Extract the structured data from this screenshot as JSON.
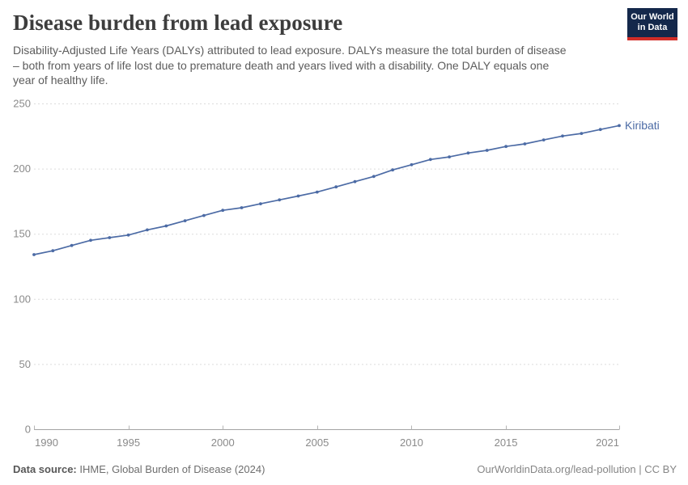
{
  "header": {
    "title": "Disease burden from lead exposure",
    "subtitle": "Disability-Adjusted Life Years (DALYs) attributed to lead exposure. DALYs measure the total burden of disease\n– both from years of life lost due to premature death and years lived with a disability. One DALY equals one\nyear of healthy life."
  },
  "logo": {
    "line1": "Our World",
    "line2": "in Data"
  },
  "colors": {
    "line": "#4C6BA5",
    "logo-bg": "#14284B",
    "logo-bar": "#D22D28",
    "grid": "#dcdcdc",
    "axis": "#a3a3a3",
    "tickmark": "#b5b5b5",
    "ticktext": "#8a8a8a"
  },
  "chart_data": {
    "type": "line",
    "title": "Disease burden from lead exposure",
    "xlabel": "",
    "ylabel": "",
    "x": [
      1990,
      1991,
      1992,
      1993,
      1994,
      1995,
      1996,
      1997,
      1998,
      1999,
      2000,
      2001,
      2002,
      2003,
      2004,
      2005,
      2006,
      2007,
      2008,
      2009,
      2010,
      2011,
      2012,
      2013,
      2014,
      2015,
      2016,
      2017,
      2018,
      2019,
      2020,
      2021
    ],
    "series": [
      {
        "name": "Kiribati",
        "color": "#4C6BA5",
        "values": [
          134,
          137,
          141,
          145,
          147,
          149,
          153,
          156,
          160,
          164,
          168,
          170,
          173,
          176,
          179,
          182,
          186,
          190,
          194,
          199,
          203,
          207,
          209,
          212,
          214,
          217,
          219,
          222,
          225,
          227,
          230,
          233
        ]
      }
    ],
    "ylim": [
      0,
      250
    ],
    "yticks": [
      0,
      50,
      100,
      150,
      200,
      250
    ],
    "xticks": [
      1990,
      1995,
      2000,
      2005,
      2010,
      2015,
      2021
    ],
    "grid": "horizontal-dashed",
    "legend_position": "end-of-line-label",
    "end_label": "Kiribati"
  },
  "footer": {
    "source_label": "Data source:",
    "source_text": " IHME, Global Burden of Disease (2024)",
    "license_text": "OurWorldinData.org/lead-pollution | CC BY"
  }
}
